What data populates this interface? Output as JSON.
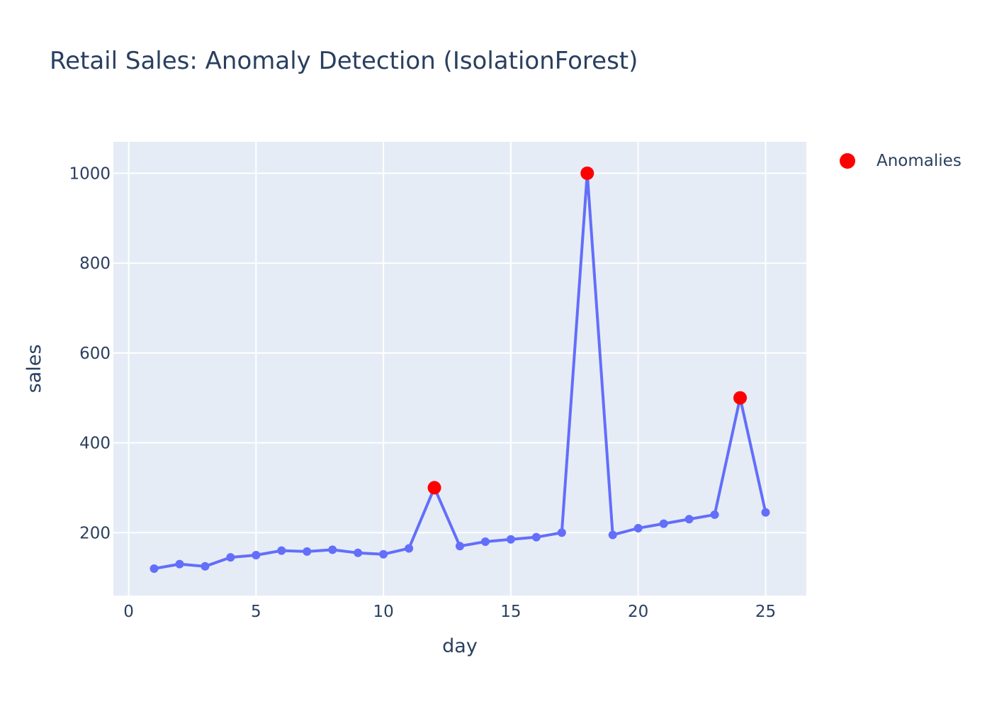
{
  "chart_data": {
    "type": "line",
    "title": "Retail Sales: Anomaly Detection (IsolationForest)",
    "xlabel": "day",
    "ylabel": "sales",
    "xlim": [
      -0.6,
      26.6
    ],
    "ylim": [
      60,
      1070
    ],
    "xticks": [
      0,
      5,
      10,
      15,
      20,
      25
    ],
    "yticks": [
      200,
      400,
      600,
      800,
      1000
    ],
    "grid": true,
    "legend_position": "top-right",
    "colors": {
      "background": "#e5ecf6",
      "grid": "#ffffff",
      "line": "#636efa",
      "anomaly": "#ff0000",
      "text": "#2a3f5f"
    },
    "series": [
      {
        "x": [
          1,
          2,
          3,
          4,
          5,
          6,
          7,
          8,
          9,
          10,
          11,
          12,
          13,
          14,
          15,
          16,
          17,
          18,
          19,
          20,
          21,
          22,
          23,
          24,
          25
        ],
        "y": [
          120,
          130,
          125,
          145,
          150,
          160,
          158,
          162,
          155,
          152,
          165,
          300,
          170,
          180,
          185,
          190,
          200,
          1000,
          195,
          210,
          220,
          230,
          240,
          500,
          245
        ]
      },
      {
        "name": "Anomalies",
        "x": [
          12,
          18,
          24
        ],
        "y": [
          300,
          1000,
          500
        ]
      }
    ]
  }
}
